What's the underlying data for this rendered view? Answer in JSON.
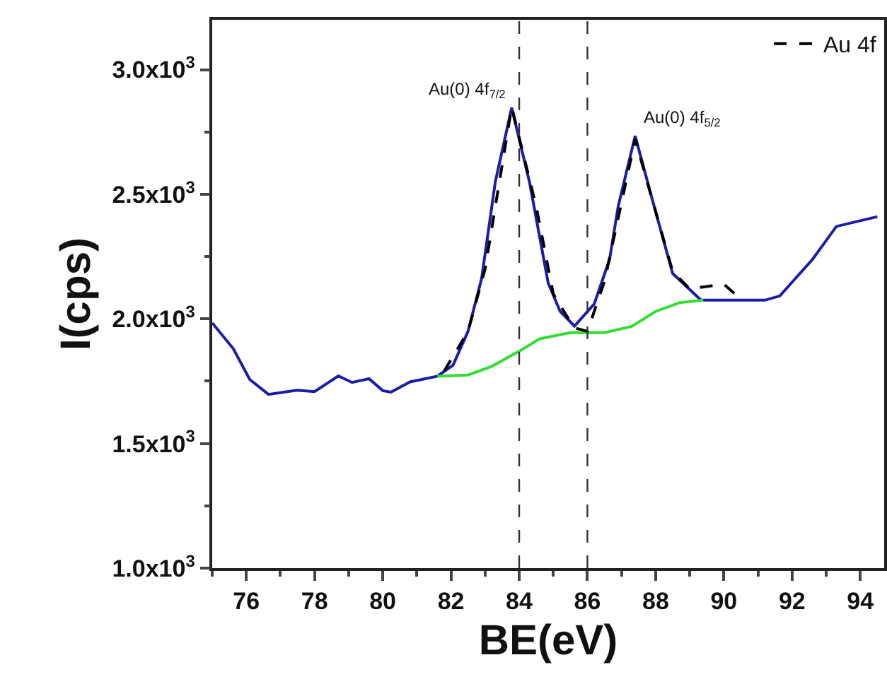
{
  "chart_data": {
    "type": "line",
    "xlabel": "BE(eV)",
    "ylabel": "I(cps)",
    "xlim": [
      75,
      94.7
    ],
    "xticks": [
      76,
      78,
      80,
      82,
      84,
      86,
      88,
      90,
      92,
      94
    ],
    "ylim": [
      1000,
      3200
    ],
    "yticks": [
      {
        "value": 1000,
        "label": "1.0x10$^{3}$"
      },
      {
        "value": 1500,
        "label": "1.5x10$^{3}$"
      },
      {
        "value": 2000,
        "label": "2.0x10$^{3}$"
      },
      {
        "value": 2500,
        "label": "2.5x10$^{3}$"
      },
      {
        "value": 3000,
        "label": "3.0x10$^{3}$"
      }
    ],
    "grid": false,
    "legend": "top right",
    "marker": "none",
    "series": [
      {
        "color": "#1c1ca8",
        "line_style": "solid",
        "x": [
          75,
          75.62,
          76.1,
          76.65,
          77.48,
          78,
          78.7,
          79.1,
          79.6,
          80,
          80.24,
          80.8,
          81.6,
          82.06,
          82.5,
          82.9,
          83.3,
          83.78,
          84.3,
          84.85,
          85.2,
          85.62,
          86.2,
          86.65,
          86.9,
          87.4,
          87.9,
          88.5,
          89.33,
          90.7,
          91.2,
          91.64,
          92.6,
          93.3,
          94.5
        ],
        "values": [
          1984,
          1880,
          1757,
          1697,
          1714,
          1708,
          1771,
          1745,
          1760,
          1712,
          1706,
          1747,
          1770,
          1814,
          1950,
          2163,
          2550,
          2847,
          2550,
          2144,
          2030,
          1971,
          2060,
          2239,
          2450,
          2734,
          2480,
          2182,
          2075,
          2075,
          2075,
          2092,
          2239,
          2371,
          2410
        ]
      },
      {
        "color": "#33dd33",
        "line_style": "solid",
        "x": [
          81.6,
          82.5,
          83.2,
          84,
          84.6,
          85.5,
          86.5,
          87.3,
          88,
          88.7,
          89.4
        ],
        "values": [
          1770,
          1775,
          1810,
          1870,
          1920,
          1945,
          1945,
          1970,
          2030,
          2065,
          2075
        ]
      },
      {
        "name": "Au 4f",
        "color": "#000000",
        "line_style": "dashed",
        "x": [
          81.8,
          82.5,
          83,
          83.78,
          84.5,
          85,
          85.6,
          86,
          86.5,
          87.4,
          88.5,
          89,
          89.5,
          90,
          90.4
        ],
        "values": [
          1790,
          1950,
          2200,
          2850,
          2450,
          2100,
          1965,
          1950,
          2150,
          2720,
          2190,
          2120,
          2130,
          2140,
          2090
        ]
      }
    ],
    "ref_lines": [
      {
        "axis": "x",
        "value": 84,
        "color": "#333333",
        "line_style": "dashed"
      },
      {
        "axis": "x",
        "value": 86,
        "color": "#333333",
        "line_style": "dashed"
      }
    ],
    "annotations": [
      {
        "text": "Au(0) 4f$_{7/2}$",
        "x": 83.78,
        "y": 2850
      },
      {
        "text": "Au(0) 4f$_{5/2}$",
        "x": 87.4,
        "y": 2734
      }
    ]
  }
}
